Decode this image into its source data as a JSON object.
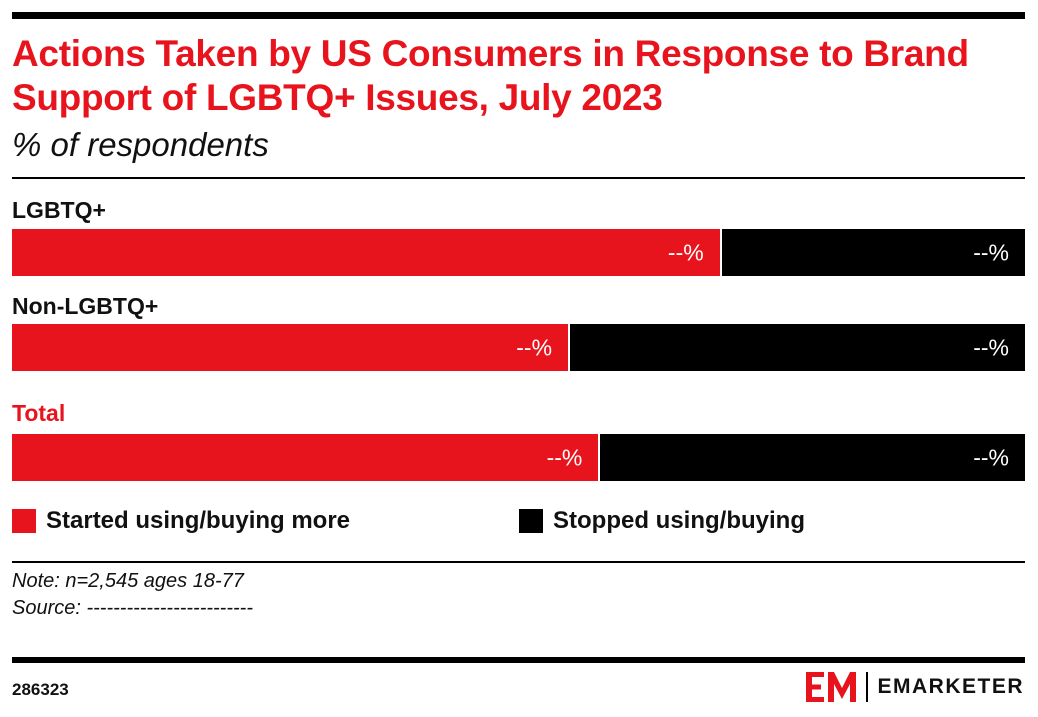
{
  "title": "Actions Taken by US Consumers in Response to Brand Support of LGBTQ+ Issues, July 2023",
  "subtitle": "% of respondents",
  "colors": {
    "started": "#e8141d",
    "stopped": "#000000",
    "title": "#e8141d"
  },
  "chart_data": {
    "type": "bar",
    "orientation": "horizontal",
    "stacked": true,
    "normalized_to": 100,
    "categories": [
      "LGBTQ+",
      "Non-LGBTQ+",
      "Total"
    ],
    "series": [
      {
        "name": "Started using/buying more",
        "values": [
          70,
          55,
          58
        ],
        "value_labels": [
          "--%",
          "--%",
          "--%"
        ]
      },
      {
        "name": "Stopped using/buying",
        "values": [
          30,
          45,
          42
        ],
        "value_labels": [
          "--%",
          "--%",
          "--%"
        ]
      }
    ],
    "legend_position": "bottom"
  },
  "legend": [
    "Started using/buying more",
    "Stopped using/buying"
  ],
  "note": "Note: n=2,545 ages 18-77",
  "source": "Source: -------------------------",
  "chart_id": "286323",
  "brand": {
    "name": "EMARKETER",
    "icon": "em-logo-icon"
  }
}
